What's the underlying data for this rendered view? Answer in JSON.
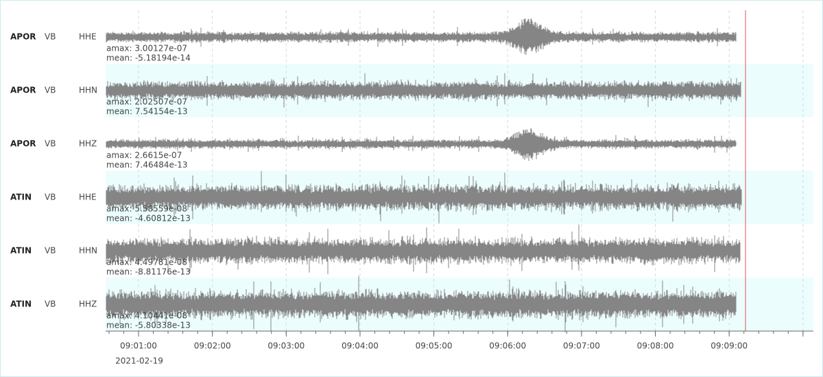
{
  "traces": [
    {
      "station": "APOR",
      "network": "VB",
      "channel": "HHE",
      "amax": "amax: 3.00127e-07",
      "mean": "mean: -5.18194e-14"
    },
    {
      "station": "APOR",
      "network": "VB",
      "channel": "HHN",
      "amax": "amax: 2.02507e-07",
      "mean": "mean: 7.54154e-13"
    },
    {
      "station": "APOR",
      "network": "VB",
      "channel": "HHZ",
      "amax": "amax: 2.6615e-07",
      "mean": "mean: 7.46484e-13"
    },
    {
      "station": "ATIN",
      "network": "VB",
      "channel": "HHE",
      "amax": "amax: 5.58559e-08",
      "mean": "mean: -4.60812e-13"
    },
    {
      "station": "ATIN",
      "network": "VB",
      "channel": "HHN",
      "amax": "amax: 4.49781e-08",
      "mean": "mean: -8.81176e-13"
    },
    {
      "station": "ATIN",
      "network": "VB",
      "channel": "HHZ",
      "amax": "amax: 4.10441e-08",
      "mean": "mean: -5.80338e-13"
    }
  ],
  "time_axis": {
    "ticks": [
      "09:01:00",
      "09:02:00",
      "09:03:00",
      "09:04:00",
      "09:05:00",
      "09:06:00",
      "09:07:00",
      "09:08:00",
      "09:09:00"
    ],
    "date": "2021-02-19"
  }
}
